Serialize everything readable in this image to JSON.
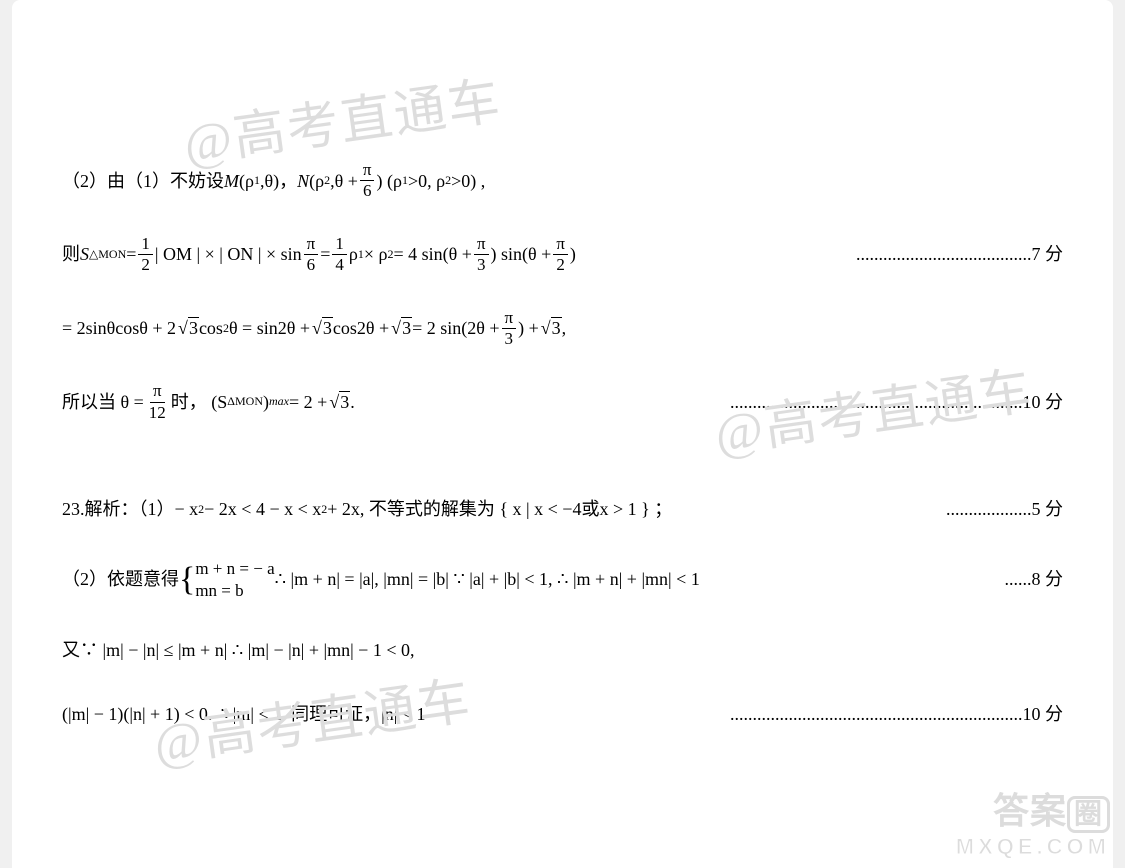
{
  "watermark": "@高考直通车",
  "corner": {
    "line1a": "答案",
    "line1b": "圈",
    "line2": "MXQE.COM"
  },
  "problem22": {
    "part2_intro_a": "（2）由（1）不妨设 ",
    "M_label": "M",
    "M_args": "(ρ",
    "M_sub": "1",
    "M_args2": ",θ)，  ",
    "N_label": "N",
    "N_args": "(ρ",
    "N_sub": "2",
    "N_args2": ",θ + ",
    "N_frac_num": "π",
    "N_frac_den": "6",
    "N_close": ") (ρ",
    "cond1": ">0, ρ",
    "cond2": ">0) ,",
    "then": "则  ",
    "S_label": "S",
    "S_sub": "△MON",
    "eq1": " = ",
    "half_num": "1",
    "half_den": "2",
    "mid1": " | OM | × | ON | × sin",
    "pi6_num": "π",
    "pi6_den": "6",
    "eq2": " = ",
    "quarter_num": "1",
    "quarter_den": "4",
    "mid2": " ρ",
    "mid2b": " × ρ",
    "mid2c": " = 4 sin(θ + ",
    "pi3_num": "π",
    "pi3_den": "3",
    "mid3": ") sin(θ + ",
    "pi2_num": "π",
    "pi2_den": "2",
    "mid4": ")",
    "score7": "7 分",
    "line3a": "= 2sinθcosθ + 2",
    "sqrt3a": "3",
    "line3b": "cos",
    "sq": "2",
    "line3c": "θ = sin2θ + ",
    "sqrt3b": "3",
    "line3d": "cos2θ + ",
    "sqrt3c": "3",
    "line3e": " = 2 sin(2θ + ",
    "pi3b_num": "π",
    "pi3b_den": "3",
    "line3f": ") + ",
    "sqrt3d": "3",
    "line3g": " ,",
    "line4a": "所以当 θ = ",
    "pi12_num": "π",
    "pi12_den": "12",
    "line4b": " 时，  (S",
    "line4_sub": "ΔMON",
    "line4c": ")",
    "line4_max": "max",
    "line4d": " = 2 + ",
    "sqrt3e": "3",
    "line4e": ".",
    "score10": "10 分"
  },
  "problem23": {
    "line1a": "23.解析：（1）− x",
    "sq": "2",
    "line1b": " − 2x < 4 − x < x",
    "line1c": " + 2x, 不等式的解集为 { x | x < −4或x > 1 } ；",
    "score5": "5 分",
    "line2a": "（2）依题意得",
    "sys1": "m + n = − a",
    "sys2": "mn = b",
    "line2b": " ∴ |m + n| = |a|, |mn| = |b| ∵ |a| + |b| < 1, ∴ |m + n| + |mn| < 1",
    "score8": "8 分",
    "line3": "又∵ |m| − |n| ≤ |m + n| ∴ |m| − |n| + |mn| − 1 < 0,",
    "line4a": "(|m| − 1)(|n| + 1) < 0. ∴ |m| < 1. 同理可证，|n| < 1",
    "score10": "10 分"
  },
  "dots_long": ".......................................",
  "dots_med": ".................................................................",
  "dots_short": "...................",
  "dots_8": "......"
}
